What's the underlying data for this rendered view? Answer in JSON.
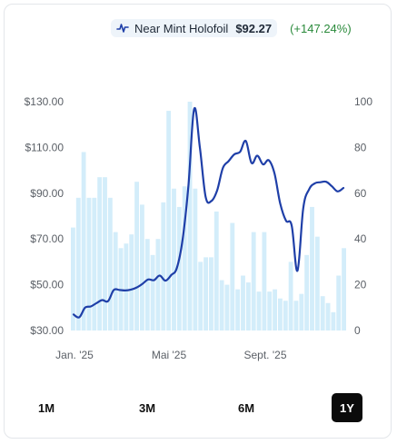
{
  "legend": {
    "series_name": "Near Mint Holofoil",
    "price": "$92.27",
    "change": "(+147.24%)",
    "icon": "line-chart-icon",
    "change_color": "#2a8a3b"
  },
  "chart_data": {
    "type": "line",
    "series": [
      {
        "name": "Near Mint Holofoil",
        "color": "#1f3fa8",
        "axis": "left",
        "points": [
          [
            0,
            37
          ],
          [
            1,
            35.8
          ],
          [
            2,
            40
          ],
          [
            3,
            40.5
          ],
          [
            4,
            42
          ],
          [
            5,
            43.3
          ],
          [
            6,
            42.8
          ],
          [
            7,
            47.7
          ],
          [
            8,
            47.7
          ],
          [
            9,
            47.5
          ],
          [
            10,
            47.9
          ],
          [
            11,
            48.8
          ],
          [
            12,
            50.4
          ],
          [
            13,
            52.3
          ],
          [
            14,
            52
          ],
          [
            15,
            54
          ],
          [
            16,
            51.8
          ],
          [
            17,
            54.2
          ],
          [
            18,
            57.4
          ],
          [
            19,
            70
          ],
          [
            20,
            93.2
          ],
          [
            21,
            126.8
          ],
          [
            22,
            110
          ],
          [
            23,
            88.5
          ],
          [
            24,
            86.6
          ],
          [
            25,
            91.2
          ],
          [
            26,
            101
          ],
          [
            27,
            104
          ],
          [
            28,
            107
          ],
          [
            29,
            108.1
          ],
          [
            30,
            112.8
          ],
          [
            31,
            103.2
          ],
          [
            32,
            106.4
          ],
          [
            33,
            102.6
          ],
          [
            34,
            104.4
          ],
          [
            35,
            98.6
          ],
          [
            36,
            85.4
          ],
          [
            37,
            78
          ],
          [
            38,
            75.8
          ],
          [
            39,
            56.1
          ],
          [
            40,
            83.4
          ],
          [
            41,
            91.6
          ],
          [
            42,
            94.3
          ],
          [
            43,
            94.8
          ],
          [
            44,
            95
          ],
          [
            45,
            93
          ],
          [
            46,
            90.8
          ],
          [
            47,
            92.3
          ]
        ]
      },
      {
        "name": "Volume",
        "color": "#d3edfa",
        "type": "bar",
        "axis": "right",
        "values": [
          45,
          58,
          78,
          58,
          58,
          67,
          67,
          58,
          43,
          36,
          38,
          42,
          65,
          55,
          40,
          33,
          40,
          56,
          96,
          62,
          54,
          63,
          100,
          62,
          30,
          32,
          32,
          52,
          22,
          20,
          47,
          18,
          24,
          21,
          43,
          17,
          43,
          17,
          18,
          14,
          13,
          30,
          13,
          16,
          33,
          54,
          41,
          15,
          12,
          8,
          24,
          36
        ]
      }
    ],
    "x_tick_labels": [
      "Jan. '25",
      "Mai '25",
      "Sept. '25"
    ],
    "y_left": {
      "ticks": [
        "$130.00",
        "$110.00",
        "$90.00",
        "$70.00",
        "$50.00",
        "$30.00"
      ],
      "range": [
        30,
        130
      ]
    },
    "y_right": {
      "ticks": [
        "100",
        "80",
        "60",
        "40",
        "20",
        "0"
      ],
      "range": [
        0,
        100
      ]
    },
    "grid": false
  },
  "ranges": {
    "items": [
      "1M",
      "3M",
      "6M",
      "1Y"
    ],
    "active": "1Y"
  }
}
